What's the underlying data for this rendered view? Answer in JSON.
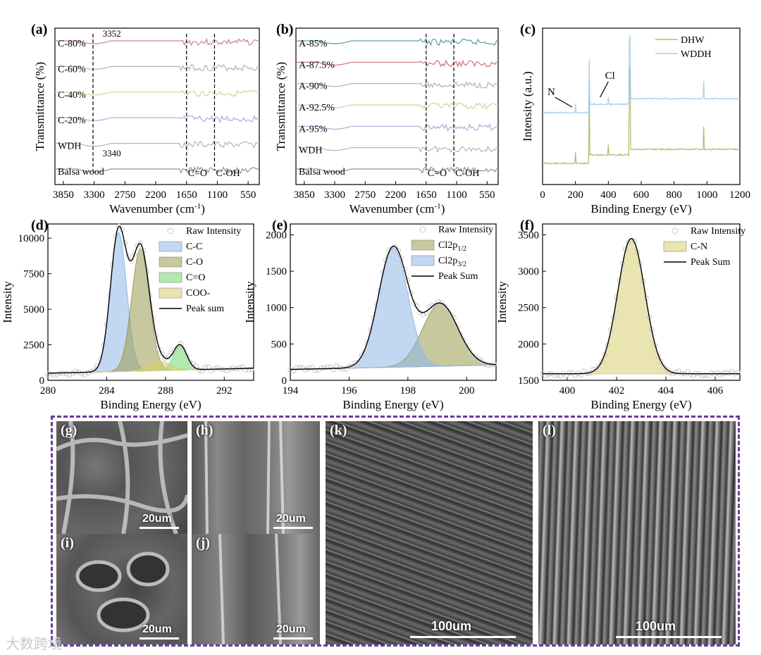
{
  "panels": [
    {
      "id": "a",
      "label": "(a)",
      "kind": "ftir",
      "xlabel": "Wavenumber (cm",
      "xlabel_sup": "-1",
      "xlabel_end": ")",
      "ylabel": "Transmittance (%)",
      "xticks": [
        3850,
        3300,
        2750,
        2200,
        1650,
        1100,
        550
      ],
      "xlim": [
        4000,
        350
      ],
      "series": [
        {
          "name": "C-80%",
          "color": "#d08080"
        },
        {
          "name": "C-60%",
          "color": "#b0b0b0"
        },
        {
          "name": "C-40%",
          "color": "#d8d0a0"
        },
        {
          "name": "C-20%",
          "color": "#a0b0d8"
        },
        {
          "name": "WDH",
          "color": "#a8c0a0"
        },
        {
          "name": "Balsa wood",
          "color": "#909090"
        }
      ],
      "markers": [
        {
          "x": 3320,
          "label": ""
        },
        {
          "x": 1650,
          "label": "C=O"
        },
        {
          "x": 1150,
          "label": "C-OH"
        }
      ],
      "annotations": [
        "3352",
        "3340"
      ]
    },
    {
      "id": "b",
      "label": "(b)",
      "kind": "ftir",
      "xlabel": "Wavenumber (cm",
      "xlabel_sup": "-1",
      "xlabel_end": ")",
      "ylabel": "Transmittance (%)",
      "xticks": [
        3850,
        3300,
        2750,
        2200,
        1650,
        1100,
        550
      ],
      "xlim": [
        4000,
        350
      ],
      "series": [
        {
          "name": "A-85%",
          "color": "#5a9aaa"
        },
        {
          "name": "A-87.5%",
          "color": "#d07070"
        },
        {
          "name": "A-90%",
          "color": "#b0b0b0"
        },
        {
          "name": "A-92.5%",
          "color": "#d8d0a0"
        },
        {
          "name": "A-95%",
          "color": "#a0b0d8"
        },
        {
          "name": "WDH",
          "color": "#a8c0a0"
        },
        {
          "name": "Balsa wood",
          "color": "#909090"
        }
      ],
      "markers": [
        {
          "x": 1650,
          "label": "C=O"
        },
        {
          "x": 1150,
          "label": "C-OH"
        }
      ]
    },
    {
      "id": "c",
      "label": "(c)",
      "kind": "xps-survey",
      "xlabel": "Binding Energy (eV)",
      "ylabel": "Intensity (a.u.)",
      "xticks": [
        0,
        200,
        400,
        600,
        800,
        1000,
        1200
      ],
      "xlim": [
        0,
        1200
      ],
      "series": [
        {
          "name": "DHW",
          "color": "#b8b870"
        },
        {
          "name": "WDDH",
          "color": "#a8d0ea"
        }
      ],
      "annotations": [
        "N",
        "Cl"
      ]
    },
    {
      "id": "d",
      "label": "(d)",
      "kind": "xps-fit",
      "xlabel": "Binding Energy (eV)",
      "ylabel": "Intensity",
      "xticks": [
        280,
        284,
        288,
        292
      ],
      "yticks": [
        0,
        2500,
        5000,
        7500,
        10000
      ],
      "xlim": [
        280,
        294
      ],
      "ylim": [
        0,
        11000
      ],
      "baseline": [
        500,
        850
      ],
      "peaks": [
        {
          "name": "C-C",
          "center": 284.8,
          "height": 9800,
          "sigma": 0.55,
          "color": "#8fb8e8"
        },
        {
          "name": "C-O",
          "center": 286.3,
          "height": 8600,
          "sigma": 0.6,
          "color": "#9a9a50"
        },
        {
          "name": "C=O",
          "center": 289.0,
          "height": 1700,
          "sigma": 0.45,
          "color": "#70d870"
        },
        {
          "name": "COO-",
          "center": 287.6,
          "height": 650,
          "sigma": 0.7,
          "color": "#d8d070"
        }
      ],
      "legend": [
        "Raw Intensity",
        "C-C",
        "C-O",
        "C=O",
        "COO-",
        "Peak sum"
      ]
    },
    {
      "id": "e",
      "label": "(e)",
      "kind": "xps-fit",
      "xlabel": "Binding Energy (eV)",
      "ylabel": "Intensity",
      "xticks": [
        194,
        196,
        198,
        200
      ],
      "yticks": [
        0,
        500,
        1000,
        1500,
        2000
      ],
      "xlim": [
        194,
        201
      ],
      "ylim": [
        0,
        2150
      ],
      "baseline": [
        150,
        210
      ],
      "peaks": [
        {
          "name": "Cl2p1/2",
          "center": 199.1,
          "height": 860,
          "sigma": 0.6,
          "color": "#9a9a50"
        },
        {
          "name": "Cl2p3/2",
          "center": 197.5,
          "height": 1640,
          "sigma": 0.5,
          "color": "#8fb8e8"
        }
      ],
      "legend": [
        "Raw Intensity",
        "Cl2p",
        "Cl2p",
        "Peak Sum"
      ],
      "legend_subs": [
        "",
        "1/2",
        "3/2",
        ""
      ]
    },
    {
      "id": "f",
      "label": "(f)",
      "kind": "xps-fit",
      "xlabel": "Binding Energy (eV)",
      "ylabel": "Intensity",
      "xticks": [
        400,
        402,
        404,
        406
      ],
      "yticks": [
        1500,
        2000,
        2500,
        3000,
        3500
      ],
      "xlim": [
        399,
        407
      ],
      "ylim": [
        1500,
        3650
      ],
      "baseline": [
        1590,
        1590
      ],
      "peaks": [
        {
          "name": "C-N",
          "center": 402.6,
          "height": 1860,
          "sigma": 0.55,
          "color": "#d8d070"
        }
      ],
      "legend": [
        "Raw Intensity",
        "C-N",
        "Peak Sum"
      ]
    }
  ],
  "sem": [
    {
      "label": "(g)",
      "scale": "20um"
    },
    {
      "label": "(h)",
      "scale": "20um"
    },
    {
      "label": "(i)",
      "scale": "20um"
    },
    {
      "label": "(j)",
      "scale": "20um"
    },
    {
      "label": "(k)",
      "scale": "100um"
    },
    {
      "label": "(l)",
      "scale": "100um"
    }
  ],
  "watermark": "大数跨境"
}
